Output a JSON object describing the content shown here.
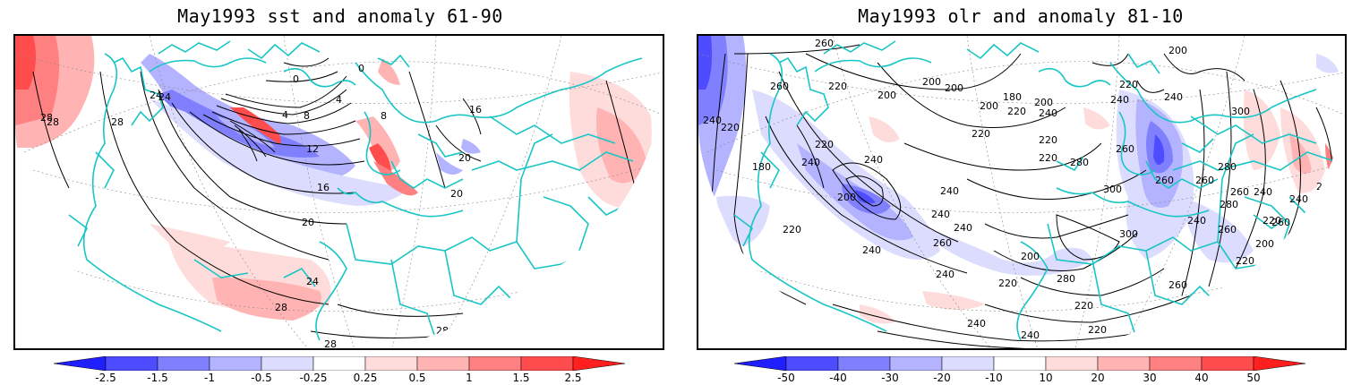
{
  "panels": [
    {
      "title": "May1993 sst and anomaly 61-90",
      "colorbar": {
        "labels": [
          "-2.5",
          "-1.5",
          "-1",
          "-0.5",
          "-0.25",
          "0.25",
          "0.5",
          "1",
          "1.5",
          "2.5"
        ],
        "colors": [
          "#1f1fff",
          "#4d4dff",
          "#8080ff",
          "#b3b3ff",
          "#dcdcff",
          "#ffffff",
          "#ffdcdc",
          "#ffb3b3",
          "#ff8080",
          "#ff4d4d",
          "#ff1f1f"
        ]
      },
      "contour_labels": [
        "28",
        "28",
        "24",
        "24",
        "20",
        "20",
        "16",
        "16",
        "12",
        "8",
        "8",
        "4",
        "4",
        "0",
        "0",
        "28",
        "28",
        "24",
        "20",
        "28",
        "28"
      ]
    },
    {
      "title": "May1993 olr and anomaly 81-10",
      "colorbar": {
        "labels": [
          "-50",
          "-40",
          "-30",
          "-20",
          "-10",
          "10",
          "20",
          "30",
          "40",
          "50"
        ],
        "colors": [
          "#1f1fff",
          "#4d4dff",
          "#8080ff",
          "#b3b3ff",
          "#dcdcff",
          "#ffffff",
          "#ffdcdc",
          "#ffb3b3",
          "#ff8080",
          "#ff4d4d",
          "#ff1f1f"
        ]
      },
      "contour_labels": [
        "260",
        "220",
        "200",
        "180",
        "200",
        "220",
        "200",
        "300",
        "260",
        "240",
        "220",
        "240",
        "200",
        "200",
        "220",
        "240",
        "200",
        "180",
        "220",
        "240",
        "240",
        "220",
        "220",
        "240",
        "260",
        "280",
        "300",
        "280",
        "260",
        "260",
        "240",
        "220",
        "240",
        "200",
        "240",
        "240",
        "260",
        "220",
        "240",
        "260",
        "280",
        "260",
        "240",
        "220",
        "240",
        "220",
        "220",
        "200",
        "260",
        "240",
        "220",
        "200",
        "280",
        "300",
        "220",
        "240",
        "260",
        "240",
        "220"
      ]
    }
  ]
}
